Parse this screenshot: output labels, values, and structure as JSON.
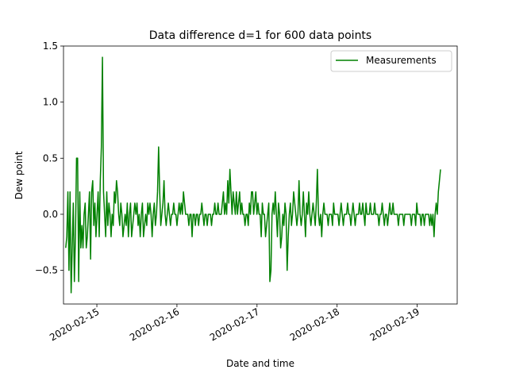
{
  "chart_data": {
    "type": "line",
    "title": "Data difference d=1 for 600 data points",
    "xlabel": "Date and time",
    "ylabel": "Dew point",
    "xlim": [
      "2020-02-14 14:00",
      "2020-02-19 12:00"
    ],
    "ylim": [
      -0.8,
      1.5
    ],
    "x_ticks": [
      "2020-02-15",
      "2020-02-16",
      "2020-02-17",
      "2020-02-18",
      "2020-02-19"
    ],
    "y_ticks": [
      {
        "value": 1.5,
        "label": "1.5"
      },
      {
        "value": 1.0,
        "label": "1.0"
      },
      {
        "value": 0.5,
        "label": "0.5"
      },
      {
        "value": 0.0,
        "label": "0.0"
      },
      {
        "value": -0.5,
        "label": "−0.5"
      }
    ],
    "grid": false,
    "legend": {
      "position": "top-right",
      "entries": [
        "Measurements"
      ]
    },
    "series": [
      {
        "name": "Measurements",
        "color": "#008000",
        "x_start": "2020-02-14 14:40",
        "x_end": "2020-02-19 07:00",
        "values": [
          -0.3,
          -0.2,
          0.2,
          -0.5,
          0.2,
          -0.7,
          -0.3,
          0.1,
          -0.6,
          -0.2,
          0.5,
          0.5,
          -0.6,
          0.2,
          -0.3,
          -0.1,
          -0.3,
          0.0,
          0.1,
          -0.3,
          -0.2,
          0.0,
          0.2,
          -0.4,
          0.2,
          0.3,
          -0.1,
          0.1,
          -0.2,
          0.0,
          0.2,
          -0.2,
          0.3,
          0.6,
          1.4,
          0.2,
          0.0,
          -0.2,
          0.2,
          -0.1,
          0.1,
          0.0,
          -0.2,
          0.0,
          -0.1,
          0.2,
          0.1,
          0.3,
          0.2,
          0.0,
          -0.1,
          0.1,
          0.0,
          -0.2,
          -0.1,
          0.0,
          -0.1,
          0.1,
          -0.2,
          0.0,
          0.1,
          -0.2,
          -0.1,
          0.0,
          0.1,
          0.0,
          0.1,
          -0.1,
          0.0,
          -0.2,
          0.0,
          0.1,
          -0.2,
          -0.1,
          0.0,
          -0.1,
          0.1,
          0.0,
          0.1,
          0.0,
          -0.2,
          0.0,
          0.1,
          -0.1,
          0.0,
          0.2,
          0.6,
          0.2,
          -0.1,
          0.0,
          0.1,
          0.3,
          0.0,
          -0.1,
          0.0,
          0.1,
          0.0,
          -0.1,
          0.0,
          0.0,
          0.1,
          0.0,
          0.0,
          -0.1,
          0.0,
          0.1,
          0.0,
          0.1,
          0.0,
          0.2,
          0.1,
          0.0,
          0.0,
          0.0,
          -0.1,
          0.0,
          0.0,
          -0.2,
          0.0,
          0.0,
          -0.1,
          0.0,
          0.0,
          -0.1,
          0.0,
          0.0,
          0.1,
          0.0,
          -0.1,
          0.0,
          0.0,
          -0.1,
          0.0,
          0.0,
          0.0,
          -0.1,
          0.0,
          0.0,
          0.1,
          0.0,
          0.0,
          0.1,
          0.0,
          0.0,
          0.0,
          0.1,
          0.2,
          0.0,
          0.1,
          0.0,
          0.3,
          0.1,
          0.4,
          0.2,
          0.0,
          0.2,
          0.1,
          0.0,
          0.2,
          0.0,
          0.1,
          0.2,
          0.0,
          0.1,
          0.0,
          0.0,
          -0.1,
          0.0,
          0.0,
          -0.1,
          0.1,
          0.0,
          0.2,
          0.2,
          0.0,
          0.1,
          0.2,
          0.0,
          0.1,
          0.0,
          0.0,
          -0.2,
          0.1,
          0.0,
          0.0,
          -0.2,
          -0.1,
          0.0,
          0.1,
          -0.6,
          -0.5,
          0.0,
          0.1,
          0.0,
          0.2,
          0.0,
          -0.2,
          0.1,
          0.0,
          -0.3,
          -0.2,
          0.0,
          -0.1,
          0.1,
          0.0,
          -0.5,
          -0.2,
          0.0,
          0.1,
          -0.1,
          0.0,
          0.2,
          0.1,
          0.0,
          -0.1,
          0.0,
          0.3,
          0.0,
          -0.1,
          0.0,
          0.2,
          0.0,
          -0.2,
          0.1,
          0.0,
          0.2,
          0.0,
          -0.1,
          0.0,
          0.1,
          0.0,
          -0.1,
          0.1,
          0.4,
          0.0,
          -0.1,
          0.0,
          -0.2,
          0.0,
          0.1,
          0.0,
          0.0,
          0.0,
          -0.1,
          0.0,
          0.0,
          0.0,
          -0.1,
          0.1,
          0.0,
          0.0,
          0.0,
          0.0,
          -0.1,
          0.0,
          0.1,
          0.0,
          -0.1,
          0.0,
          0.0,
          0.0,
          0.1,
          0.0,
          0.0,
          -0.1,
          0.0,
          0.1,
          0.0,
          -0.1,
          0.0,
          0.0,
          0.0,
          0.1,
          0.0,
          0.0,
          0.1,
          0.0,
          -0.1,
          0.1,
          0.0,
          0.0,
          0.0,
          0.1,
          0.0,
          0.0,
          0.0,
          0.1,
          0.0,
          0.0,
          0.0,
          -0.1,
          0.0,
          0.0,
          0.1,
          0.0,
          -0.1,
          0.0,
          0.0,
          -0.1,
          0.0,
          0.1,
          0.0,
          0.0,
          0.1,
          0.0,
          0.0,
          0.0,
          0.0,
          -0.1,
          0.0,
          0.0,
          0.0,
          0.0,
          -0.1,
          0.0,
          0.0,
          0.0,
          0.0,
          0.0,
          0.0,
          -0.1,
          0.0,
          0.0,
          0.0,
          -0.1,
          0.1,
          0.0,
          0.0,
          0.0,
          -0.1,
          0.0,
          0.0,
          -0.1,
          0.0,
          0.0,
          0.0,
          0.0,
          -0.1,
          0.0,
          -0.1,
          0.0,
          -0.2,
          0.0,
          0.1,
          0.0,
          0.2,
          0.3,
          0.4
        ]
      }
    ]
  }
}
